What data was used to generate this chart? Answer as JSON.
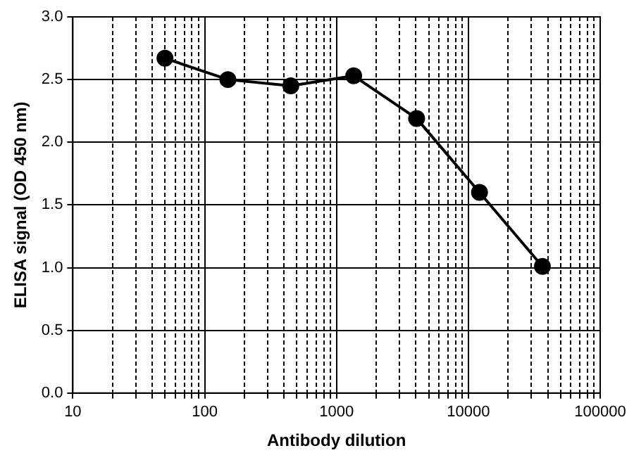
{
  "chart_data": {
    "type": "line",
    "xlabel": "Antibody dilution",
    "ylabel": "ELISA signal (OD 450 nm)",
    "log": "x",
    "x": [
      50,
      150,
      450,
      1350,
      4050,
      12150,
      36450
    ],
    "series": [
      {
        "color": "#000000",
        "values": [
          2.67,
          2.5,
          2.45,
          2.53,
          2.19,
          1.6,
          1.01
        ]
      }
    ],
    "xlim": [
      10,
      100000
    ],
    "xticks": [
      10,
      {
        "value": 20,
        "label": null
      },
      {
        "value": 30,
        "label": null
      },
      {
        "value": 40,
        "label": null
      },
      {
        "value": 50,
        "label": null
      },
      {
        "value": 60,
        "label": null
      },
      {
        "value": 70,
        "label": null
      },
      {
        "value": 80,
        "label": null
      },
      {
        "value": 90,
        "label": null
      },
      100,
      {
        "value": 200,
        "label": null
      },
      {
        "value": 300,
        "label": null
      },
      {
        "value": 400,
        "label": null
      },
      {
        "value": 500,
        "label": null
      },
      {
        "value": 600,
        "label": null
      },
      {
        "value": 700,
        "label": null
      },
      {
        "value": 800,
        "label": null
      },
      {
        "value": 900,
        "label": null
      },
      1000,
      {
        "value": 2000,
        "label": null
      },
      {
        "value": 3000,
        "label": null
      },
      {
        "value": 4000,
        "label": null
      },
      {
        "value": 5000,
        "label": null
      },
      {
        "value": 6000,
        "label": null
      },
      {
        "value": 7000,
        "label": null
      },
      {
        "value": 8000,
        "label": null
      },
      {
        "value": 9000,
        "label": null
      },
      10000,
      {
        "value": 20000,
        "label": null
      },
      {
        "value": 30000,
        "label": null
      },
      {
        "value": 40000,
        "label": null
      },
      {
        "value": 50000,
        "label": null
      },
      {
        "value": 60000,
        "label": null
      },
      {
        "value": 70000,
        "label": null
      },
      {
        "value": 80000,
        "label": null
      },
      {
        "value": 90000,
        "label": null
      },
      100000
    ],
    "ylim": [
      0,
      3
    ],
    "yticks": [
      {
        "value": 0,
        "label": "0.0"
      },
      0.5,
      {
        "value": 1,
        "label": "1.0"
      },
      1.5,
      {
        "value": 2,
        "label": "2.0"
      },
      2.5,
      {
        "value": 3,
        "label": "3.0"
      }
    ],
    "grid": true,
    "marker": "circle",
    "line_style": "solid",
    "legend": false
  }
}
